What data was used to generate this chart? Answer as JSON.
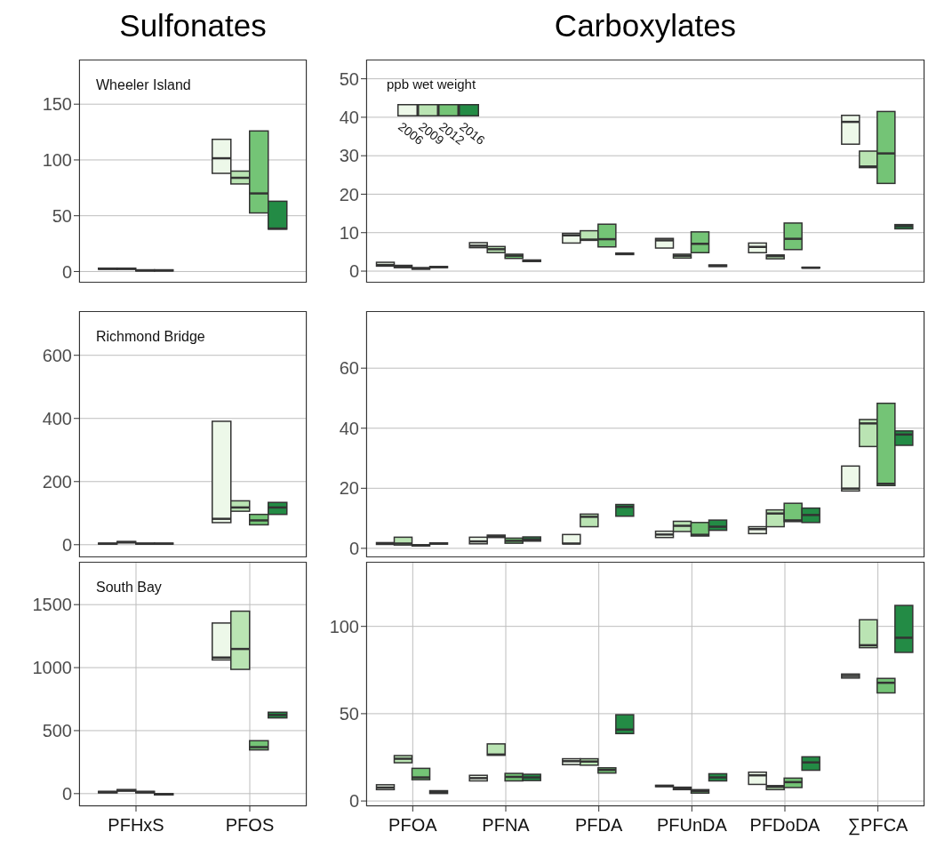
{
  "chart_data": [
    {
      "type": "box",
      "title": "Sulfonates",
      "annotations": [
        "Wheeler Island"
      ],
      "categories": [
        null,
        null
      ],
      "ylim": [
        -10,
        190
      ],
      "yticks": [
        0,
        50,
        100,
        150
      ],
      "grid": true,
      "tick_labels": "y",
      "series": [
        {
          "color": "#edf8e9",
          "boxes": [
            {
              "low": 2,
              "q1": 2,
              "median": 2.5,
              "q3": 3,
              "high": 3
            },
            {
              "low": 88,
              "q1": 88,
              "median": 101.5,
              "q3": 118.5,
              "high": 118.5
            }
          ]
        },
        {
          "color": "#bae4b3",
          "boxes": [
            {
              "low": 2,
              "q1": 2,
              "median": 2.5,
              "q3": 3,
              "high": 3
            },
            {
              "low": 78.5,
              "q1": 78.5,
              "median": 84,
              "q3": 90,
              "high": 90
            }
          ]
        },
        {
          "color": "#74c476",
          "boxes": [
            {
              "low": 0.5,
              "q1": 0.5,
              "median": 1,
              "q3": 1.5,
              "high": 1.5
            },
            {
              "low": 52.5,
              "q1": 52.5,
              "median": 70,
              "q3": 126,
              "high": 126
            }
          ]
        },
        {
          "color": "#238b45",
          "boxes": [
            {
              "low": 0.5,
              "q1": 0.5,
              "median": 1,
              "q3": 1.5,
              "high": 1.5
            },
            {
              "low": 38,
              "q1": 38,
              "median": 38.5,
              "q3": 63,
              "high": 63
            }
          ]
        }
      ]
    },
    {
      "type": "box",
      "title": "Carboxylates",
      "categories": [
        null,
        null,
        null,
        null,
        null,
        null
      ],
      "ylim": [
        -3,
        55
      ],
      "yticks": [
        0,
        10,
        20,
        30,
        40,
        50
      ],
      "grid": true,
      "tick_labels": "y",
      "legend": "top left",
      "legend_title": "ppb wet weight",
      "series": [
        {
          "name": "2006",
          "color": "#edf8e9",
          "boxes": [
            {
              "low": 1.3,
              "q1": 1.3,
              "median": 1.6,
              "q3": 2.3,
              "high": 2.3
            },
            {
              "low": 6.1,
              "q1": 6.1,
              "median": 6.6,
              "q3": 7.4,
              "high": 7.4
            },
            {
              "low": 7.3,
              "q1": 7.3,
              "median": 9.3,
              "q3": 9.8,
              "high": 9.8
            },
            {
              "low": 6,
              "q1": 6,
              "median": 8,
              "q3": 8.5,
              "high": 8.5
            },
            {
              "low": 4.8,
              "q1": 4.8,
              "median": 6.3,
              "q3": 7.3,
              "high": 7.3
            },
            {
              "low": 33,
              "q1": 33,
              "median": 38.8,
              "q3": 40.5,
              "high": 40.5
            }
          ]
        },
        {
          "name": "2009",
          "color": "#bae4b3",
          "boxes": [
            {
              "low": 0.9,
              "q1": 0.9,
              "median": 1.2,
              "q3": 1.5,
              "high": 1.5
            },
            {
              "low": 4.8,
              "q1": 4.8,
              "median": 5.7,
              "q3": 6.4,
              "high": 6.4
            },
            {
              "low": 8,
              "q1": 8,
              "median": 8.2,
              "q3": 10.5,
              "high": 10.5
            },
            {
              "low": 3.4,
              "q1": 3.4,
              "median": 4,
              "q3": 4.4,
              "high": 4.4
            },
            {
              "low": 3.2,
              "q1": 3.2,
              "median": 3.9,
              "q3": 4.2,
              "high": 4.2
            },
            {
              "low": 26.9,
              "q1": 26.9,
              "median": 27.2,
              "q3": 31.2,
              "high": 31.2
            }
          ]
        },
        {
          "name": "2012",
          "color": "#74c476",
          "boxes": [
            {
              "low": 0.5,
              "q1": 0.5,
              "median": 0.7,
              "q3": 0.9,
              "high": 0.9
            },
            {
              "low": 3.3,
              "q1": 3.3,
              "median": 4,
              "q3": 4.4,
              "high": 4.4
            },
            {
              "low": 6.3,
              "q1": 6.3,
              "median": 8.3,
              "q3": 12.2,
              "high": 12.2
            },
            {
              "low": 4.8,
              "q1": 4.8,
              "median": 7.1,
              "q3": 10.2,
              "high": 10.2
            },
            {
              "low": 5.6,
              "q1": 5.6,
              "median": 8.4,
              "q3": 12.5,
              "high": 12.5
            },
            {
              "low": 22.8,
              "q1": 22.8,
              "median": 30.6,
              "q3": 41.5,
              "high": 41.5
            }
          ]
        },
        {
          "name": "2016",
          "color": "#238b45",
          "boxes": [
            {
              "low": 0.9,
              "q1": 0.9,
              "median": 1.1,
              "q3": 1.2,
              "high": 1.2
            },
            {
              "low": 2.5,
              "q1": 2.5,
              "median": 2.7,
              "q3": 2.9,
              "high": 2.9
            },
            {
              "low": 4.3,
              "q1": 4.3,
              "median": 4.5,
              "q3": 4.7,
              "high": 4.7
            },
            {
              "low": 1.2,
              "q1": 1.2,
              "median": 1.4,
              "q3": 1.6,
              "high": 1.6
            },
            {
              "low": 0.8,
              "q1": 0.8,
              "median": 0.9,
              "q3": 1,
              "high": 1
            },
            {
              "low": 11,
              "q1": 11,
              "median": 11.7,
              "q3": 12.1,
              "high": 12.1
            }
          ]
        }
      ]
    },
    {
      "type": "box",
      "annotations": [
        "Richmond Bridge"
      ],
      "categories": [
        null,
        null
      ],
      "ylim": [
        -40,
        740
      ],
      "yticks": [
        0,
        200,
        400,
        600
      ],
      "grid": true,
      "tick_labels": "y",
      "series": [
        {
          "color": "#edf8e9",
          "boxes": [
            {
              "low": 2,
              "q1": 2,
              "median": 3,
              "q3": 5,
              "high": 5
            },
            {
              "low": 70,
              "q1": 70,
              "median": 82,
              "q3": 391,
              "high": 391
            }
          ]
        },
        {
          "color": "#bae4b3",
          "boxes": [
            {
              "low": 6,
              "q1": 6,
              "median": 8,
              "q3": 10,
              "high": 10
            },
            {
              "low": 106,
              "q1": 106,
              "median": 118,
              "q3": 139,
              "high": 139
            }
          ]
        },
        {
          "color": "#74c476",
          "boxes": [
            {
              "low": 2,
              "q1": 2,
              "median": 3,
              "q3": 5,
              "high": 5
            },
            {
              "low": 63,
              "q1": 63,
              "median": 77,
              "q3": 96,
              "high": 96
            }
          ]
        },
        {
          "color": "#238b45",
          "boxes": [
            {
              "low": 2,
              "q1": 2,
              "median": 3,
              "q3": 5,
              "high": 5
            },
            {
              "low": 96,
              "q1": 96,
              "median": 118,
              "q3": 134,
              "high": 134
            }
          ]
        }
      ]
    },
    {
      "type": "box",
      "categories": [
        null,
        null,
        null,
        null,
        null,
        null
      ],
      "ylim": [
        -3,
        79
      ],
      "yticks": [
        0,
        20,
        40,
        60
      ],
      "grid": true,
      "tick_labels": "y",
      "series": [
        {
          "color": "#edf8e9",
          "boxes": [
            {
              "low": 1.3,
              "q1": 1.3,
              "median": 1.6,
              "q3": 1.9,
              "high": 1.9
            },
            {
              "low": 1.5,
              "q1": 1.5,
              "median": 2.3,
              "q3": 3.7,
              "high": 3.7
            },
            {
              "low": 1.5,
              "q1": 1.5,
              "median": 1.6,
              "q3": 4.6,
              "high": 4.6
            },
            {
              "low": 3.6,
              "q1": 3.6,
              "median": 4.6,
              "q3": 5.7,
              "high": 5.7
            },
            {
              "low": 4.9,
              "q1": 4.9,
              "median": 6.4,
              "q3": 7.2,
              "high": 7.2
            },
            {
              "low": 19.1,
              "q1": 19.1,
              "median": 19.9,
              "q3": 27.4,
              "high": 27.4
            }
          ]
        },
        {
          "color": "#bae4b3",
          "boxes": [
            {
              "low": 1.1,
              "q1": 1.1,
              "median": 1.6,
              "q3": 3.7,
              "high": 3.7
            },
            {
              "low": 3.6,
              "q1": 3.6,
              "median": 4,
              "q3": 4.4,
              "high": 4.4
            },
            {
              "low": 7.2,
              "q1": 7.2,
              "median": 10.5,
              "q3": 11.4,
              "high": 11.4
            },
            {
              "low": 5.6,
              "q1": 5.6,
              "median": 7.5,
              "q3": 9,
              "high": 9
            },
            {
              "low": 7.2,
              "q1": 7.2,
              "median": 11.6,
              "q3": 12.8,
              "high": 12.8
            },
            {
              "low": 33.9,
              "q1": 33.9,
              "median": 41.6,
              "q3": 42.9,
              "high": 42.9
            }
          ]
        },
        {
          "color": "#74c476",
          "boxes": [
            {
              "low": 0.8,
              "q1": 0.8,
              "median": 1,
              "q3": 1.2,
              "high": 1.2
            },
            {
              "low": 1.7,
              "q1": 1.7,
              "median": 2.5,
              "q3": 3.4,
              "high": 3.4
            },
            null,
            {
              "low": 4.1,
              "q1": 4.1,
              "median": 4.5,
              "q3": 8.6,
              "high": 8.6
            },
            {
              "low": 8.9,
              "q1": 8.9,
              "median": 9.3,
              "q3": 15,
              "high": 15
            },
            {
              "low": 20.9,
              "q1": 20.9,
              "median": 21.5,
              "q3": 48.3,
              "high": 48.3
            }
          ]
        },
        {
          "color": "#238b45",
          "boxes": [
            {
              "low": 1.4,
              "q1": 1.4,
              "median": 1.6,
              "q3": 1.8,
              "high": 1.8
            },
            {
              "low": 2.4,
              "q1": 2.4,
              "median": 3,
              "q3": 3.8,
              "high": 3.8
            },
            {
              "low": 10.7,
              "q1": 10.7,
              "median": 13.8,
              "q3": 14.6,
              "high": 14.6
            },
            {
              "low": 6,
              "q1": 6,
              "median": 7.2,
              "q3": 9.4,
              "high": 9.4
            },
            {
              "low": 8.6,
              "q1": 8.6,
              "median": 11.1,
              "q3": 13.4,
              "high": 13.4
            },
            {
              "low": 34.3,
              "q1": 34.3,
              "median": 37.9,
              "q3": 39.1,
              "high": 39.1
            }
          ]
        }
      ]
    },
    {
      "type": "box",
      "annotations": [
        "South Bay"
      ],
      "categories": [
        "PFHxS",
        "PFOS"
      ],
      "ylim": [
        -100,
        1840
      ],
      "yticks": [
        0,
        500,
        1000,
        1500
      ],
      "grid": true,
      "series": [
        {
          "color": "#edf8e9",
          "boxes": [
            {
              "low": 6,
              "q1": 6,
              "median": 12,
              "q3": 18,
              "high": 18
            },
            {
              "low": 1061,
              "q1": 1061,
              "median": 1080,
              "q3": 1354,
              "high": 1354
            }
          ]
        },
        {
          "color": "#bae4b3",
          "boxes": [
            {
              "low": 20,
              "q1": 20,
              "median": 26,
              "q3": 32,
              "high": 32
            },
            {
              "low": 986,
              "q1": 986,
              "median": 1148,
              "q3": 1448,
              "high": 1448
            }
          ]
        },
        {
          "color": "#74c476",
          "boxes": [
            {
              "low": 6,
              "q1": 6,
              "median": 12,
              "q3": 18,
              "high": 18
            },
            {
              "low": 347,
              "q1": 347,
              "median": 369,
              "q3": 420,
              "high": 420
            }
          ]
        },
        {
          "color": "#238b45",
          "boxes": [
            {
              "low": -10,
              "q1": -10,
              "median": -5,
              "q3": 0,
              "high": 0
            },
            {
              "low": 601,
              "q1": 601,
              "median": 624,
              "q3": 646,
              "high": 646
            }
          ]
        }
      ]
    },
    {
      "type": "box",
      "categories": [
        "PFOA",
        "PFNA",
        "PFDA",
        "PFUnDA",
        "PFDoDA",
        "∑PFCA"
      ],
      "ylim": [
        -3,
        137
      ],
      "yticks": [
        0,
        50,
        100
      ],
      "grid": true,
      "series": [
        {
          "color": "#edf8e9",
          "boxes": [
            {
              "low": 6.5,
              "q1": 6.5,
              "median": 7.7,
              "q3": 9.3,
              "high": 9.3
            },
            {
              "low": 11.5,
              "q1": 11.5,
              "median": 13.1,
              "q3": 14.7,
              "high": 14.7
            },
            {
              "low": 20.8,
              "q1": 20.8,
              "median": 22.8,
              "q3": 24.2,
              "high": 24.2
            },
            {
              "low": 8.2,
              "q1": 8.2,
              "median": 8.6,
              "q3": 9,
              "high": 9
            },
            {
              "low": 9.5,
              "q1": 9.5,
              "median": 14.7,
              "q3": 16.5,
              "high": 16.5
            },
            {
              "low": 70.4,
              "q1": 70.4,
              "median": 71.6,
              "q3": 72.7,
              "high": 72.7
            }
          ]
        },
        {
          "color": "#bae4b3",
          "boxes": [
            {
              "low": 21.9,
              "q1": 21.9,
              "median": 24.2,
              "q3": 26,
              "high": 26
            },
            {
              "low": 26.2,
              "q1": 26.2,
              "median": 26.6,
              "q3": 32.7,
              "high": 32.7
            },
            {
              "low": 20.5,
              "q1": 20.5,
              "median": 22.6,
              "q3": 24.2,
              "high": 24.2
            },
            {
              "low": 6.5,
              "q1": 6.5,
              "median": 7.2,
              "q3": 7.9,
              "high": 7.9
            },
            {
              "low": 6.5,
              "q1": 6.5,
              "median": 8.1,
              "q3": 8.8,
              "high": 8.8
            },
            {
              "low": 87.8,
              "q1": 87.8,
              "median": 89.2,
              "q3": 103.8,
              "high": 103.8
            }
          ]
        },
        {
          "color": "#74c476",
          "boxes": [
            {
              "low": 12.2,
              "q1": 12.2,
              "median": 13.5,
              "q3": 18.7,
              "high": 18.7
            },
            {
              "low": 11.5,
              "q1": 11.5,
              "median": 13.8,
              "q3": 15.8,
              "high": 15.8
            },
            {
              "low": 16,
              "q1": 16,
              "median": 17.8,
              "q3": 19,
              "high": 19
            },
            {
              "low": 4.5,
              "q1": 4.5,
              "median": 5.6,
              "q3": 6.5,
              "high": 6.5
            },
            {
              "low": 7.7,
              "q1": 7.7,
              "median": 10.8,
              "q3": 13.1,
              "high": 13.1
            },
            {
              "low": 61.9,
              "q1": 61.9,
              "median": 67.7,
              "q3": 70.2,
              "high": 70.2
            }
          ]
        },
        {
          "color": "#238b45",
          "boxes": [
            {
              "low": 4.3,
              "q1": 4.3,
              "median": 5,
              "q3": 5.9,
              "high": 5.9
            },
            {
              "low": 11.7,
              "q1": 11.7,
              "median": 13.5,
              "q3": 15.3,
              "high": 15.3
            },
            {
              "low": 38.6,
              "q1": 38.6,
              "median": 40.9,
              "q3": 49.4,
              "high": 49.4
            },
            {
              "low": 11.5,
              "q1": 11.5,
              "median": 13.5,
              "q3": 15.6,
              "high": 15.6
            },
            {
              "low": 17.6,
              "q1": 17.6,
              "median": 22.1,
              "q3": 25.3,
              "high": 25.3
            },
            {
              "low": 85.1,
              "q1": 85.1,
              "median": 93.5,
              "q3": 112,
              "high": 112
            }
          ]
        }
      ]
    }
  ]
}
